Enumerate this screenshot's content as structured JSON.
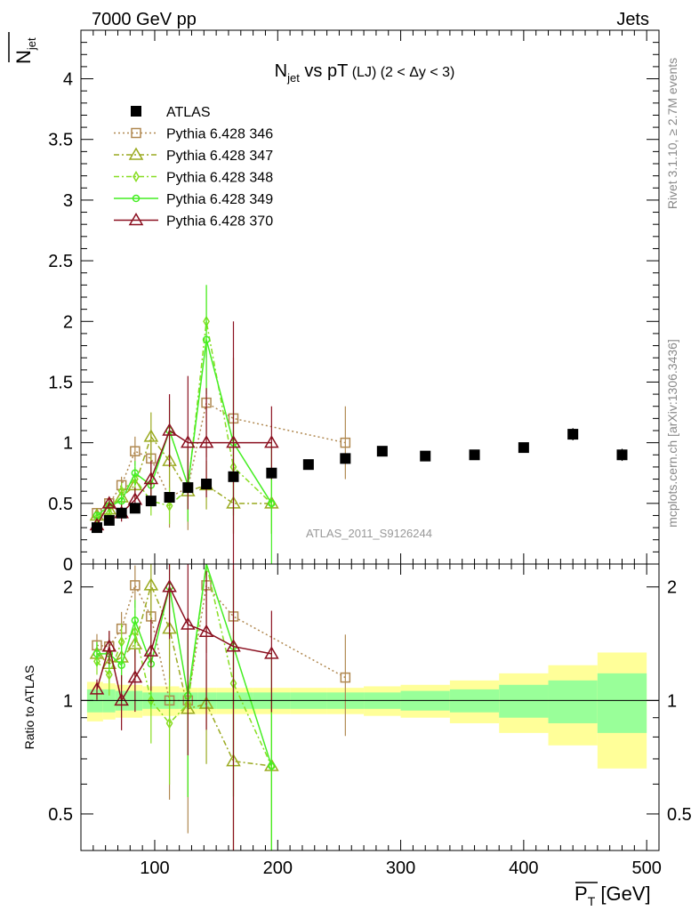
{
  "header": {
    "left": "7000 GeV pp",
    "right": "Jets"
  },
  "side": {
    "rivet": "Rivet 3.1.10, ≥ 2.7M events",
    "mcplots": "mcplots.cern.ch [arXiv:1306.3436]"
  },
  "chart_data": {
    "type": "line",
    "title": "N_jet vs pT (LJ) (2 < Δy < 3)",
    "watermark": "ATLAS_2011_S9126244",
    "ylabel": "N_jet (mean)",
    "xlabel": "P_T (mean) [GeV]",
    "ratio_ylabel": "Ratio to ATLAS",
    "xlim": [
      40,
      510
    ],
    "ylim": [
      0,
      4.4
    ],
    "ratio_ylim": [
      0.4,
      2.3
    ],
    "ratio_log": true,
    "x_ticks": [
      "100",
      "200",
      "300",
      "400",
      "500"
    ],
    "y_ticks": [
      "0",
      "0.5",
      "1",
      "1.5",
      "2",
      "2.5",
      "3",
      "3.5",
      "4"
    ],
    "ratio_ticks": [
      "0.5",
      "1",
      "2"
    ],
    "legend_position": "top-left",
    "colors": {
      "ATLAS": "#000000",
      "p346": "#b08850",
      "p347": "#9aaa20",
      "p348": "#88dd22",
      "p349": "#44ee22",
      "p370": "#8b1020",
      "band_inner": "#99ff99",
      "band_outer": "#ffff99"
    },
    "series": [
      {
        "name": "ATLAS",
        "marker": "square-filled",
        "x": [
          53,
          63,
          73,
          84,
          97,
          112,
          127,
          142,
          164,
          195,
          225,
          255,
          285,
          320,
          360,
          400,
          440,
          480
        ],
        "y": [
          0.3,
          0.36,
          0.42,
          0.46,
          0.52,
          0.55,
          0.63,
          0.66,
          0.72,
          0.75,
          0.82,
          0.87,
          0.93,
          0.89,
          0.9,
          0.96,
          1.07,
          0.9
        ],
        "yerr": [
          0.01,
          0.01,
          0.01,
          0.01,
          0.01,
          0.01,
          0.01,
          0.01,
          0.02,
          0.02,
          0.02,
          0.02,
          0.03,
          0.03,
          0.03,
          0.04,
          0.05,
          0.05
        ]
      },
      {
        "name": "Pythia 6.428 346",
        "marker": "square-open",
        "line": "dotted",
        "x": [
          53,
          63,
          73,
          84,
          97,
          112,
          127,
          142,
          164,
          255
        ],
        "y": [
          0.42,
          0.5,
          0.65,
          0.93,
          0.87,
          0.55,
          0.63,
          1.33,
          1.2,
          1.0
        ],
        "yerr": [
          0.03,
          0.05,
          0.07,
          0.12,
          0.2,
          0.25,
          0.35,
          0.45,
          0.5,
          0.3
        ],
        "ratio": [
          1.4,
          1.39,
          1.55,
          2.02,
          1.67,
          1.0,
          1.0,
          2.02,
          1.67,
          1.15
        ]
      },
      {
        "name": "Pythia 6.428 347",
        "marker": "triangle-open",
        "line": "dashdot",
        "x": [
          53,
          63,
          73,
          84,
          97,
          112,
          127,
          142,
          164,
          195
        ],
        "y": [
          0.4,
          0.45,
          0.55,
          0.65,
          1.05,
          0.85,
          0.6,
          0.65,
          0.5,
          0.5
        ],
        "yerr": [
          0.03,
          0.05,
          0.07,
          0.12,
          0.2,
          0.25,
          0.25,
          0.2,
          0.25,
          0.25
        ],
        "ratio": [
          1.33,
          1.25,
          1.3,
          1.41,
          2.02,
          1.55,
          0.95,
          0.98,
          0.69,
          0.67
        ]
      },
      {
        "name": "Pythia 6.428 348",
        "marker": "diamond-open",
        "line": "dashdot",
        "x": [
          53,
          63,
          73,
          84,
          97,
          112,
          127,
          142,
          164,
          195
        ],
        "y": [
          0.38,
          0.42,
          0.6,
          0.7,
          0.52,
          0.48,
          0.62,
          2.0,
          0.8,
          0.5
        ],
        "yerr": [
          0.03,
          0.05,
          0.07,
          0.1,
          0.12,
          0.15,
          0.2,
          0.3,
          0.3,
          0.25
        ],
        "ratio": [
          1.27,
          1.17,
          1.43,
          1.52,
          1.0,
          0.87,
          0.98,
          3.0,
          1.11,
          0.67
        ]
      },
      {
        "name": "Pythia 6.428 349",
        "marker": "circle-open",
        "line": "solid",
        "x": [
          53,
          63,
          73,
          84,
          97,
          112,
          127,
          142,
          164,
          195
        ],
        "y": [
          0.4,
          0.48,
          0.52,
          0.75,
          0.65,
          1.1,
          0.65,
          1.85,
          1.0,
          0.5
        ],
        "yerr": [
          0.03,
          0.05,
          0.07,
          0.1,
          0.15,
          0.25,
          0.3,
          0.45,
          0.6,
          0.5
        ],
        "ratio": [
          1.33,
          1.33,
          1.24,
          1.63,
          1.25,
          2.0,
          1.03,
          2.8,
          1.39,
          0.67
        ]
      },
      {
        "name": "Pythia 6.428 370",
        "marker": "triangle-open",
        "line": "solid",
        "x": [
          53,
          63,
          73,
          84,
          97,
          112,
          127,
          142,
          164,
          195
        ],
        "y": [
          0.32,
          0.5,
          0.42,
          0.53,
          0.7,
          1.1,
          1.0,
          1.0,
          1.0,
          1.0
        ],
        "yerr": [
          0.02,
          0.05,
          0.07,
          0.1,
          0.15,
          0.3,
          0.55,
          0.45,
          1.0,
          0.3
        ],
        "ratio": [
          1.07,
          1.39,
          1.0,
          1.15,
          1.35,
          2.0,
          1.59,
          1.52,
          1.39,
          1.33
        ]
      }
    ],
    "ratio_band": {
      "x_edges": [
        45,
        58,
        68,
        78,
        90,
        104,
        120,
        135,
        150,
        180,
        210,
        240,
        270,
        300,
        340,
        380,
        420,
        460,
        500
      ],
      "inner": [
        0.07,
        0.07,
        0.06,
        0.06,
        0.05,
        0.05,
        0.05,
        0.05,
        0.05,
        0.05,
        0.05,
        0.05,
        0.05,
        0.06,
        0.07,
        0.1,
        0.13,
        0.18
      ],
      "outer": [
        0.12,
        0.11,
        0.1,
        0.1,
        0.09,
        0.09,
        0.08,
        0.08,
        0.08,
        0.08,
        0.08,
        0.08,
        0.09,
        0.1,
        0.13,
        0.18,
        0.24,
        0.34
      ]
    }
  }
}
